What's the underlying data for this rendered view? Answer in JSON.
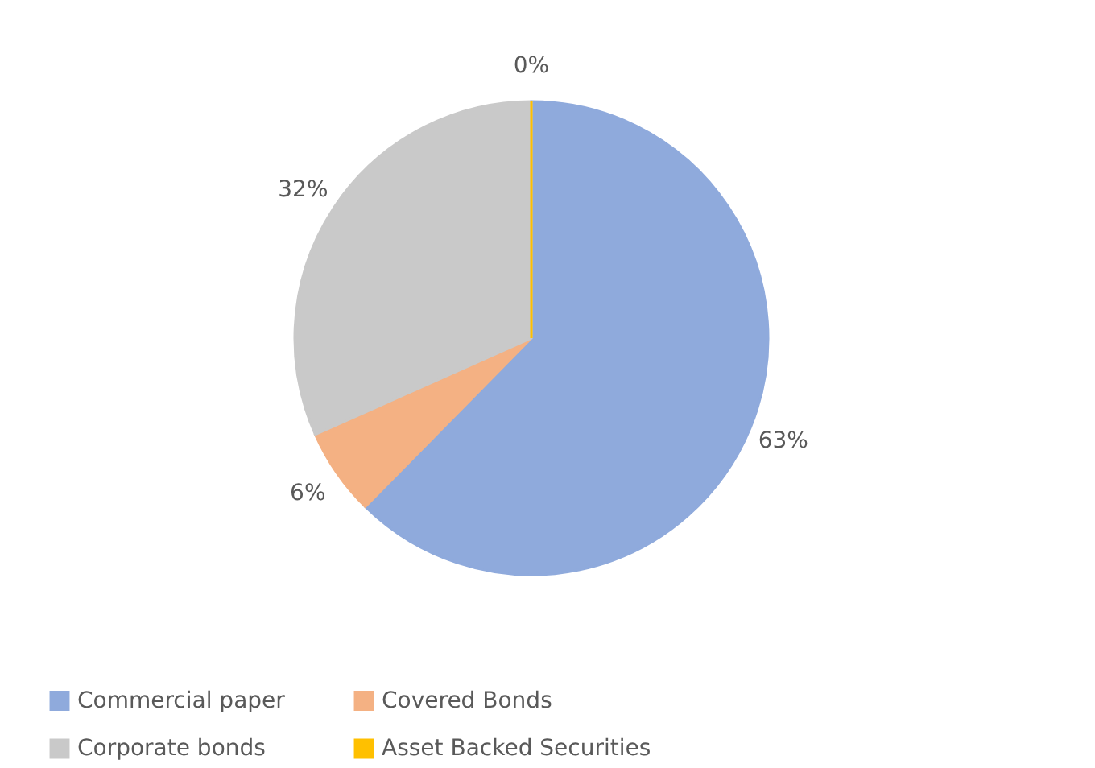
{
  "chart_data": {
    "type": "pie",
    "categories": [
      "Commercial paper",
      "Covered Bonds",
      "Corporate bonds",
      "Asset Backed Securities"
    ],
    "values": [
      63,
      6,
      32,
      0
    ],
    "colors": [
      "#8faadc",
      "#f4b183",
      "#c9c9c9",
      "#ffc000"
    ],
    "value_labels": [
      "63%",
      "6%",
      "32%",
      "0%"
    ],
    "legend": "bottom"
  }
}
